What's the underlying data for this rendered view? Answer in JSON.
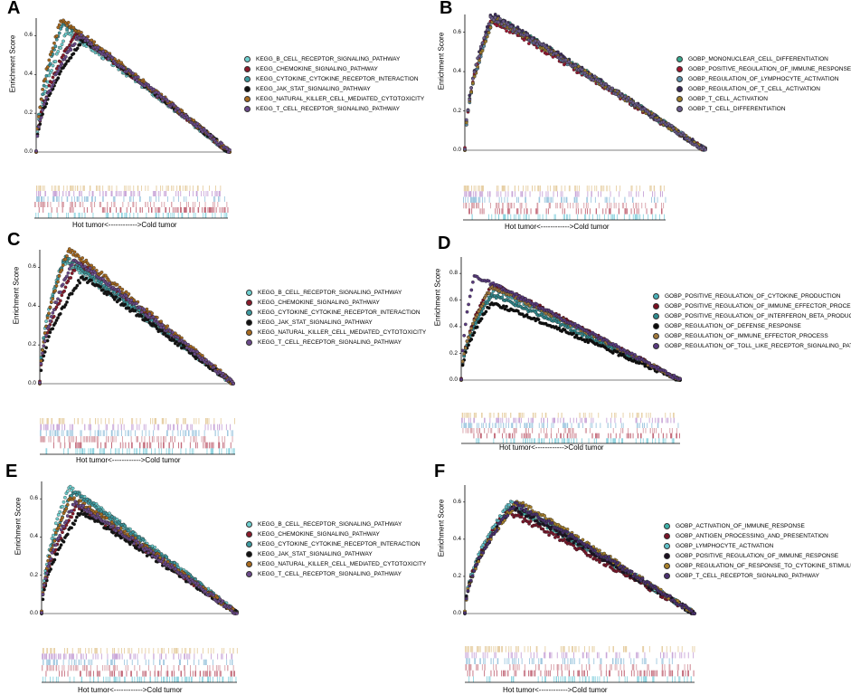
{
  "colors": {
    "kegg": [
      "#6fd0d0",
      "#8b1a2a",
      "#3d9aa0",
      "#111111",
      "#a86a1e",
      "#6b4a8a"
    ],
    "gobp_b": [
      "#3aa88e",
      "#a01630",
      "#5b8fa8",
      "#3b2a5a",
      "#9a7a2a",
      "#6a5a8a"
    ],
    "gobp_d": [
      "#4ab0b8",
      "#7a0e20",
      "#2e8a8e",
      "#0a0a0a",
      "#a0783a",
      "#5a3a80"
    ],
    "gobp_f": [
      "#3fb0a8",
      "#7a1428",
      "#60c0c8",
      "#1a1020",
      "#a8802a",
      "#4a3070"
    ],
    "heat": [
      "#e7cfa4",
      "#c9a6d8",
      "#9ec7df",
      "#d8a0a8",
      "#c36a7a",
      "#8fd4e0"
    ]
  },
  "common": {
    "ylabel": "Enrichment Score",
    "xlabel": "Hot tumor<------------>Cold tumor"
  },
  "chart_data": [
    {
      "panel": "A",
      "type": "line",
      "ylabel": "Enrichment Score",
      "xlabel": "Hot tumor<------------>Cold tumor",
      "ylim": [
        0,
        0.6
      ],
      "yticks": [
        "0.0",
        "0.2",
        "0.4",
        "0.6"
      ],
      "series": [
        {
          "name": "KEGG_B_CELL_RECEPTOR_SIGNALING_PATHWAY",
          "peak": 0.62,
          "peak_at": 0.16
        },
        {
          "name": "KEGG_CHEMOKINE_SIGNALING_PATHWAY",
          "peak": 0.61,
          "peak_at": 0.2
        },
        {
          "name": "KEGG_CYTOKINE_CYTOKINE_RECEPTOR_INTERACTION",
          "peak": 0.66,
          "peak_at": 0.14
        },
        {
          "name": "KEGG_JAK_STAT_SIGNALING_PATHWAY",
          "peak": 0.58,
          "peak_at": 0.24
        },
        {
          "name": "KEGG_NATURAL_KILLER_CELL_MEDIATED_CYTOTOXICITY",
          "peak": 0.68,
          "peak_at": 0.13
        },
        {
          "name": "KEGG_T_CELL_RECEPTOR_SIGNALING_PATHWAY",
          "peak": 0.6,
          "peak_at": 0.22
        }
      ]
    },
    {
      "panel": "B",
      "type": "line",
      "ylabel": "Enrichment Score",
      "xlabel": "Hot tumor<------------>Cold tumor",
      "ylim": [
        0,
        0.6
      ],
      "yticks": [
        "0.0",
        "0.2",
        "0.4",
        "0.6"
      ],
      "series": [
        {
          "name": "GOBP_MONONUCLEAR_CELL_DIFFERENTIATION",
          "peak": 0.68,
          "peak_at": 0.12
        },
        {
          "name": "GOBP_POSITIVE_REGULATION_OF_IMMUNE_RESPONSE",
          "peak": 0.66,
          "peak_at": 0.11
        },
        {
          "name": "GOBP_REGULATION_OF_LYMPHOCYTE_ACTIVATION",
          "peak": 0.67,
          "peak_at": 0.12
        },
        {
          "name": "GOBP_REGULATION_OF_T_CELL_ACTIVATION",
          "peak": 0.69,
          "peak_at": 0.11
        },
        {
          "name": "GOBP_T_CELL_ACTIVATION",
          "peak": 0.67,
          "peak_at": 0.12
        },
        {
          "name": "GOBP_T_CELL_DIFFERENTIATION",
          "peak": 0.68,
          "peak_at": 0.11
        }
      ]
    },
    {
      "panel": "C",
      "type": "line",
      "ylabel": "Enrichment Score",
      "xlabel": "Hot tumor<------------>Cold tumor",
      "ylim": [
        0,
        0.6
      ],
      "yticks": [
        "0.0",
        "0.2",
        "0.4",
        "0.6"
      ],
      "series": [
        {
          "name": "KEGG_B_CELL_RECEPTOR_SIGNALING_PATHWAY",
          "peak": 0.63,
          "peak_at": 0.12
        },
        {
          "name": "KEGG_CHEMOKINE_SIGNALING_PATHWAY",
          "peak": 0.62,
          "peak_at": 0.2
        },
        {
          "name": "KEGG_CYTOKINE_CYTOKINE_RECEPTOR_INTERACTION",
          "peak": 0.65,
          "peak_at": 0.13
        },
        {
          "name": "KEGG_JAK_STAT_SIGNALING_PATHWAY",
          "peak": 0.55,
          "peak_at": 0.22
        },
        {
          "name": "KEGG_NATURAL_KILLER_CELL_MEDIATED_CYTOTOXICITY",
          "peak": 0.69,
          "peak_at": 0.15
        },
        {
          "name": "KEGG_T_CELL_RECEPTOR_SIGNALING_PATHWAY",
          "peak": 0.64,
          "peak_at": 0.18
        }
      ]
    },
    {
      "panel": "D",
      "type": "line",
      "ylabel": "Enrichment Score",
      "xlabel": "Hot tumor<------------>Cold tumor",
      "ylim": [
        0,
        0.8
      ],
      "yticks": [
        "0.0",
        "0.2",
        "0.4",
        "0.6",
        "0.8"
      ],
      "series": [
        {
          "name": "GOBP_POSITIVE_REGULATION_OF_CYTOKINE_PRODUCTION",
          "peak": 0.68,
          "peak_at": 0.15
        },
        {
          "name": "GOBP_POSITIVE_REGULATION_OF_IMMUNE_EFFECTOR_PROCESS",
          "peak": 0.72,
          "peak_at": 0.14
        },
        {
          "name": "GOBP_POSITIVE_REGULATION_OF_INTERFERON_BETA_PRODUCTION",
          "peak": 0.64,
          "peak_at": 0.14
        },
        {
          "name": "GOBP_REGULATION_OF_DEFENSE_RESPONSE",
          "peak": 0.58,
          "peak_at": 0.14
        },
        {
          "name": "GOBP_REGULATION_OF_IMMUNE_EFFECTOR_PROCESS",
          "peak": 0.7,
          "peak_at": 0.14
        },
        {
          "name": "GOBP_REGULATION_OF_TOLL_LIKE_RECEPTOR_SIGNALING_PATHWAY",
          "peak": 0.78,
          "peak_at": 0.06
        }
      ]
    },
    {
      "panel": "E",
      "type": "line",
      "ylabel": "Enrichment Score",
      "xlabel": "Hot tumor<------------>Cold tumor",
      "ylim": [
        0,
        0.6
      ],
      "yticks": [
        "0.0",
        "0.2",
        "0.4",
        "0.6"
      ],
      "series": [
        {
          "name": "KEGG_B_CELL_RECEPTOR_SIGNALING_PATHWAY",
          "peak": 0.66,
          "peak_at": 0.14
        },
        {
          "name": "KEGG_CHEMOKINE_SIGNALING_PATHWAY",
          "peak": 0.56,
          "peak_at": 0.18
        },
        {
          "name": "KEGG_CYTOKINE_CYTOKINE_RECEPTOR_INTERACTION",
          "peak": 0.64,
          "peak_at": 0.16
        },
        {
          "name": "KEGG_JAK_STAT_SIGNALING_PATHWAY",
          "peak": 0.53,
          "peak_at": 0.2
        },
        {
          "name": "KEGG_NATURAL_KILLER_CELL_MEDIATED_CYTOTOXICITY",
          "peak": 0.61,
          "peak_at": 0.15
        },
        {
          "name": "KEGG_T_CELL_RECEPTOR_SIGNALING_PATHWAY",
          "peak": 0.58,
          "peak_at": 0.17
        }
      ]
    },
    {
      "panel": "F",
      "type": "line",
      "ylabel": "Enrichment Score",
      "xlabel": "Hot tumor<------------>Cold tumor",
      "ylim": [
        0,
        0.6
      ],
      "yticks": [
        "0.0",
        "0.2",
        "0.4",
        "0.6"
      ],
      "series": [
        {
          "name": "GOBP_ACTIVATION_OF_IMMUNE_RESPONSE",
          "peak": 0.58,
          "peak_at": 0.2
        },
        {
          "name": "GOBP_ANTIGEN_PROCESSING_AND_PRESENTATION",
          "peak": 0.55,
          "peak_at": 0.18
        },
        {
          "name": "GOBP_LYMPHOCYTE_ACTIVATION",
          "peak": 0.6,
          "peak_at": 0.2
        },
        {
          "name": "GOBP_POSITIVE_REGULATION_OF_IMMUNE_RESPONSE",
          "peak": 0.57,
          "peak_at": 0.21
        },
        {
          "name": "GOBP_REGULATION_OF_RESPONSE_TO_CYTOKINE_STIMULUS",
          "peak": 0.6,
          "peak_at": 0.23
        },
        {
          "name": "GOBP_T_CELL_RECEPTOR_SIGNALING_PATHWAY",
          "peak": 0.59,
          "peak_at": 0.22
        }
      ]
    }
  ]
}
